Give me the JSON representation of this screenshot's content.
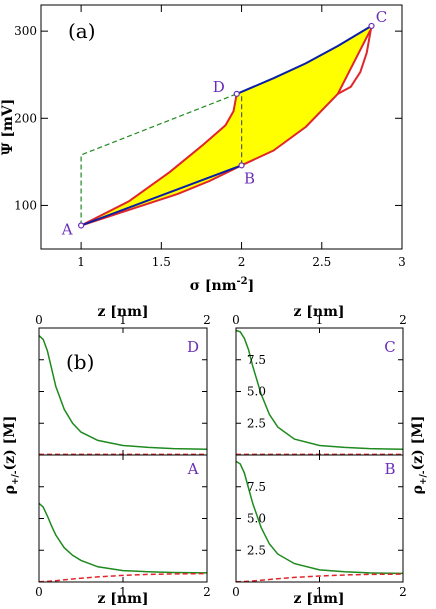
{
  "chart_data": [
    {
      "type": "line",
      "panel_label": "(a)",
      "xlabel": "σ [nm",
      "xlabel_sup": "-2",
      "xlabel_end": "]",
      "ylabel": "Ψ [mV]",
      "xlim": [
        0.75,
        3.0
      ],
      "ylim": [
        50,
        330
      ],
      "xticks": [
        "1",
        "1.5",
        "2",
        "2.5",
        "3"
      ],
      "xtick_values": [
        1,
        1.5,
        2,
        2.5,
        3
      ],
      "yticks": [
        "100",
        "200",
        "300"
      ],
      "ytick_values": [
        100,
        200,
        300
      ],
      "colors": {
        "blue": "#0a1fa8",
        "red": "#e0262a",
        "green": "#1f8a1f",
        "fill": "#ffff00",
        "points": "#6a2fb8"
      },
      "series": [
        {
          "role": "lower-red",
          "color": "#e0262a",
          "x": [
            1.0,
            1.3,
            1.6,
            1.8,
            2.0,
            2.2,
            2.4,
            2.6,
            2.8
          ],
          "y": [
            77,
            95,
            113,
            128,
            146,
            163,
            190,
            228,
            300
          ]
        },
        {
          "role": "A-to-D-red",
          "color": "#e0262a",
          "x": [
            1.0,
            1.3,
            1.55,
            1.75,
            1.9,
            1.95,
            1.97
          ],
          "y": [
            77,
            105,
            138,
            168,
            192,
            208,
            228
          ]
        },
        {
          "role": "A-to-B-blue",
          "color": "#0a1fa8",
          "x": [
            1.0,
            2.0
          ],
          "y": [
            77,
            146
          ]
        },
        {
          "role": "D-to-C-blue",
          "color": "#0a1fa8",
          "x": [
            1.97,
            2.2,
            2.4,
            2.6,
            2.81
          ],
          "y": [
            228,
            246,
            263,
            283,
            306
          ]
        },
        {
          "role": "C-drop-red",
          "color": "#e0262a",
          "x": [
            2.81,
            2.78,
            2.74,
            2.68,
            2.6
          ],
          "y": [
            306,
            275,
            253,
            236,
            228
          ]
        }
      ],
      "dashed_path": {
        "color": "#1f8a1f",
        "x": [
          1.0,
          1.0,
          1.97
        ],
        "y": [
          77,
          158,
          228
        ]
      },
      "dashed_vertical": {
        "color": "#555555",
        "x": [
          2.0,
          2.0
        ],
        "y": [
          146,
          228
        ]
      },
      "points": [
        {
          "label": "A",
          "x": 1.0,
          "y": 77
        },
        {
          "label": "B",
          "x": 2.0,
          "y": 146
        },
        {
          "label": "C",
          "x": 2.81,
          "y": 306
        },
        {
          "label": "D",
          "x": 1.97,
          "y": 228
        }
      ]
    },
    {
      "type": "line",
      "panel_label": "(b)",
      "xlabel": "z [nm]",
      "ylabel": "ρ",
      "ylabel_sub": "+/-",
      "ylabel_end": "(z) [M]",
      "xlim": [
        0,
        2
      ],
      "ylim": [
        0,
        10
      ],
      "xticks": [
        "0",
        "1",
        "2"
      ],
      "xtick_values": [
        0,
        1,
        2
      ],
      "yticks": [
        "2.5",
        "5.0",
        "7.5"
      ],
      "ytick_values": [
        2.5,
        5.0,
        7.5
      ],
      "subpanels": [
        {
          "label": "D",
          "counterion": {
            "x": [
              0,
              0.05,
              0.1,
              0.15,
              0.2,
              0.3,
              0.4,
              0.5,
              0.7,
              1.0,
              1.3,
              1.6,
              2.0
            ],
            "y": [
              9.4,
              9.1,
              8.2,
              6.8,
              5.4,
              3.6,
              2.5,
              1.8,
              1.15,
              0.75,
              0.6,
              0.5,
              0.45
            ]
          },
          "coion": {
            "x": [
              0,
              2
            ],
            "y": [
              0.05,
              0.05
            ]
          }
        },
        {
          "label": "C",
          "counterion": {
            "x": [
              0,
              0.05,
              0.1,
              0.15,
              0.2,
              0.3,
              0.4,
              0.5,
              0.7,
              1.0,
              1.3,
              1.6,
              2.0
            ],
            "y": [
              9.8,
              9.7,
              9.2,
              8.3,
              7.0,
              4.8,
              3.2,
              2.2,
              1.25,
              0.75,
              0.6,
              0.5,
              0.45
            ]
          },
          "coion": {
            "x": [
              0,
              2
            ],
            "y": [
              0.05,
              0.05
            ]
          }
        },
        {
          "label": "A",
          "counterion": {
            "x": [
              0,
              0.05,
              0.1,
              0.15,
              0.2,
              0.3,
              0.4,
              0.5,
              0.7,
              1.0,
              1.3,
              1.6,
              2.0
            ],
            "y": [
              6.2,
              5.9,
              5.2,
              4.4,
              3.7,
              2.7,
              2.1,
              1.7,
              1.2,
              0.9,
              0.8,
              0.75,
              0.72
            ]
          },
          "coion": {
            "x": [
              0,
              0.1,
              0.2,
              0.3,
              0.4,
              0.5,
              0.7,
              1.0,
              1.3,
              1.6,
              2.0
            ],
            "y": [
              0.02,
              0.05,
              0.1,
              0.17,
              0.24,
              0.3,
              0.4,
              0.52,
              0.6,
              0.64,
              0.66
            ]
          }
        },
        {
          "label": "B",
          "counterion": {
            "x": [
              0,
              0.05,
              0.1,
              0.15,
              0.2,
              0.3,
              0.4,
              0.5,
              0.7,
              1.0,
              1.3,
              1.6,
              2.0
            ],
            "y": [
              9.5,
              9.3,
              8.6,
              7.4,
              6.2,
              4.3,
              3.0,
              2.2,
              1.45,
              0.95,
              0.8,
              0.72,
              0.68
            ]
          },
          "coion": {
            "x": [
              0,
              0.1,
              0.2,
              0.3,
              0.4,
              0.5,
              0.7,
              1.0,
              1.3,
              1.6,
              2.0
            ],
            "y": [
              0.02,
              0.04,
              0.08,
              0.14,
              0.2,
              0.26,
              0.36,
              0.47,
              0.55,
              0.6,
              0.62
            ]
          }
        }
      ]
    }
  ]
}
